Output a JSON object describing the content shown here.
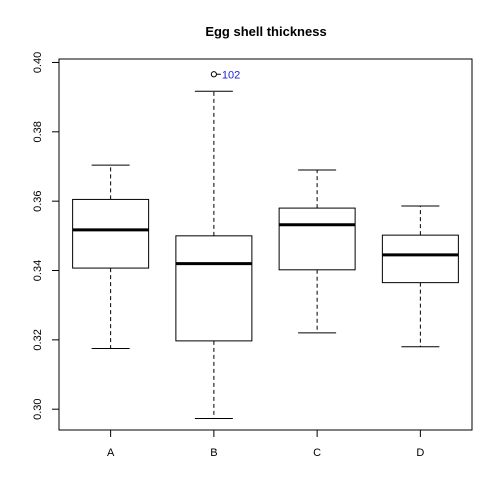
{
  "chart_data": {
    "type": "boxplot",
    "title": "Egg shell thickness",
    "xlabel": "",
    "ylabel": "",
    "ylim": [
      0.294,
      0.401
    ],
    "yticks": [
      "0.30",
      "0.32",
      "0.34",
      "0.36",
      "0.38",
      "0.40"
    ],
    "categories": [
      "A",
      "B",
      "C",
      "D"
    ],
    "boxes": [
      {
        "category": "A",
        "whisker_low": 0.3175,
        "q1": 0.3407,
        "median": 0.3517,
        "q3": 0.3605,
        "whisker_high": 0.3704
      },
      {
        "category": "B",
        "whisker_low": 0.2973,
        "q1": 0.3197,
        "median": 0.342,
        "q3": 0.35,
        "whisker_high": 0.3917
      },
      {
        "category": "C",
        "whisker_low": 0.322,
        "q1": 0.3402,
        "median": 0.3532,
        "q3": 0.358,
        "whisker_high": 0.369
      },
      {
        "category": "D",
        "whisker_low": 0.318,
        "q1": 0.3365,
        "median": 0.3445,
        "q3": 0.3502,
        "whisker_high": 0.3586
      }
    ],
    "outliers": [
      {
        "category": "B",
        "value": 0.3966,
        "label": "102"
      }
    ],
    "colors": {
      "outlier_label": "#1f1fcf",
      "stroke": "#000000"
    }
  }
}
